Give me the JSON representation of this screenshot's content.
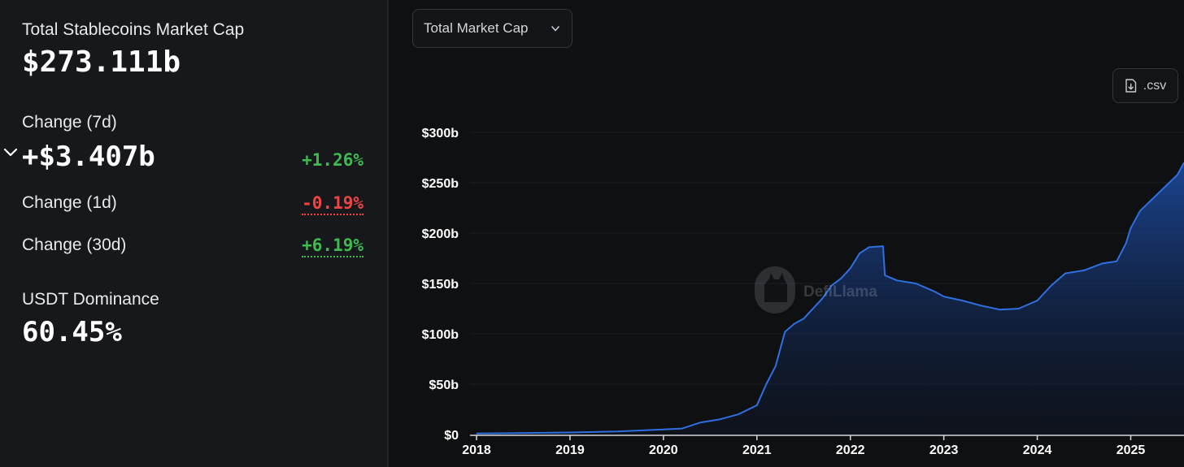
{
  "stats": {
    "total_label": "Total Stablecoins Market Cap",
    "total_value": "$273.111b",
    "change7d_label": "Change (7d)",
    "change7d_value": "+$3.407b",
    "change7d_pct": "+1.26%",
    "change1d_label": "Change (1d)",
    "change1d_pct": "-0.19%",
    "change30d_label": "Change (30d)",
    "change30d_pct": "+6.19%",
    "dominance_label": "USDT Dominance",
    "dominance_value": "60.45%"
  },
  "controls": {
    "metric_select": "Total Market Cap",
    "csv_label": ".csv"
  },
  "watermark": "DefiLlama",
  "colors": {
    "positive": "#3fb950",
    "negative": "#ef4444",
    "line": "#2f6fe0"
  },
  "chart_data": {
    "type": "area",
    "xlabel": "",
    "ylabel": "",
    "ylim": [
      0,
      300
    ],
    "y_ticks": [
      "$0",
      "$50b",
      "$100b",
      "$150b",
      "$200b",
      "$250b",
      "$300b"
    ],
    "x_ticks": [
      "2018",
      "2019",
      "2020",
      "2021",
      "2022",
      "2023",
      "2024",
      "2025"
    ],
    "grid": true,
    "series": [
      {
        "x": [
          2018.0,
          2019.0,
          2019.5,
          2020.0,
          2020.2,
          2020.4,
          2020.6,
          2020.8,
          2021.0,
          2021.1,
          2021.2,
          2021.3,
          2021.4,
          2021.5,
          2021.6,
          2021.7,
          2021.8,
          2021.9,
          2022.0,
          2022.1,
          2022.2,
          2022.35,
          2022.37,
          2022.5,
          2022.7,
          2022.9,
          2023.0,
          2023.2,
          2023.4,
          2023.6,
          2023.8,
          2024.0,
          2024.15,
          2024.3,
          2024.5,
          2024.7,
          2024.85,
          2024.95,
          2025.0,
          2025.1,
          2025.3,
          2025.5,
          2025.57
        ],
        "values": [
          1,
          2,
          3,
          5,
          6,
          12,
          15,
          20,
          29,
          50,
          68,
          102,
          110,
          115,
          125,
          135,
          148,
          155,
          165,
          180,
          186,
          187,
          158,
          153,
          150,
          142,
          137,
          133,
          128,
          124,
          125,
          133,
          148,
          160,
          163,
          170,
          172,
          190,
          205,
          222,
          240,
          258,
          270
        ]
      }
    ]
  }
}
